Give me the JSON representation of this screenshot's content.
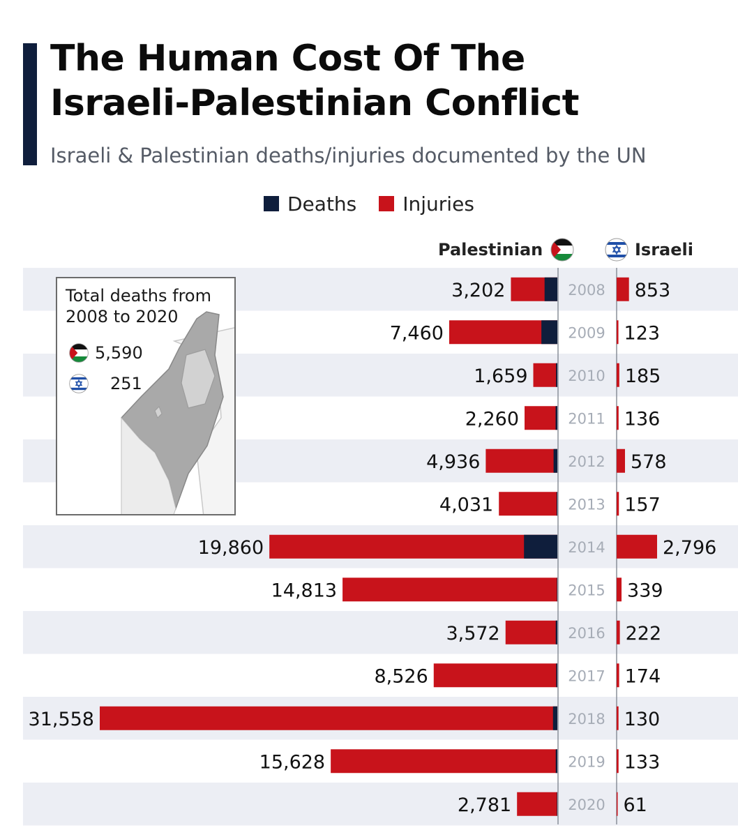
{
  "title": "The Human Cost Of The\nIsraeli-Palestinian Conflict",
  "subtitle": "Israeli & Palestinian deaths/injuries documented by the UN",
  "legend": [
    {
      "label": "Deaths",
      "color": "#0f1e3c"
    },
    {
      "label": "Injuries",
      "color": "#c8131b"
    }
  ],
  "columns": {
    "left": "Palestinian",
    "right": "Israeli"
  },
  "inset": {
    "title": "Total deaths from\n2008 to 2020",
    "palestinian_deaths": "5,590",
    "israeli_deaths": "251"
  },
  "colors": {
    "deaths": "#0f1e3c",
    "injuries": "#c8131b",
    "band": "#eceef4",
    "year_text": "#a6acb6"
  },
  "chart_data": {
    "type": "bar",
    "orientation": "horizontal-diverging",
    "categories": [
      "2008",
      "2009",
      "2010",
      "2011",
      "2012",
      "2013",
      "2014",
      "2015",
      "2016",
      "2017",
      "2018",
      "2019",
      "2020"
    ],
    "series": [
      {
        "name": "Palestinian",
        "totals": [
          3202,
          7460,
          1659,
          2260,
          4936,
          4031,
          19860,
          14813,
          3572,
          8526,
          31558,
          15628,
          2781
        ],
        "total_labels": [
          "3,202",
          "7,460",
          "1,659",
          "2,260",
          "4,936",
          "4,031",
          "19,860",
          "14,813",
          "3,572",
          "8,526",
          "31,558",
          "15,628",
          "2,781"
        ],
        "deaths": [
          880,
          1100,
          90,
          120,
          260,
          50,
          2300,
          30,
          110,
          80,
          300,
          110,
          30
        ]
      },
      {
        "name": "Israeli",
        "totals": [
          853,
          123,
          185,
          136,
          578,
          157,
          2796,
          339,
          222,
          174,
          130,
          133,
          61
        ],
        "total_labels": [
          "853",
          "123",
          "185",
          "136",
          "578",
          "157",
          "2,796",
          "339",
          "222",
          "174",
          "130",
          "133",
          "61"
        ],
        "deaths": [
          0,
          0,
          0,
          0,
          0,
          0,
          0,
          0,
          0,
          0,
          0,
          0,
          0
        ]
      }
    ]
  }
}
